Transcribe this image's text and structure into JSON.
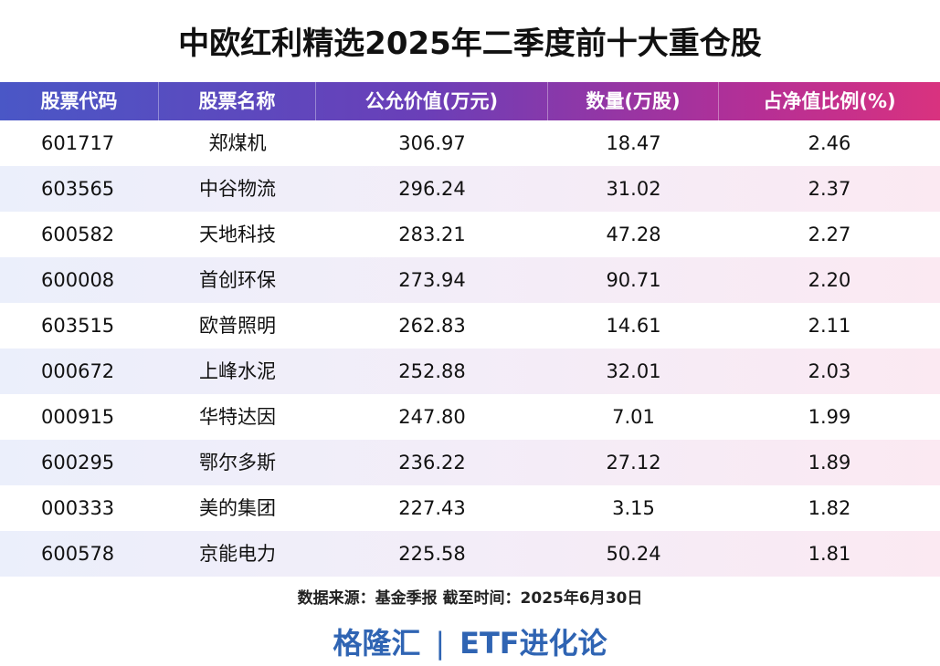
{
  "title": "中欧红利精选2025年二季度前十大重仓股",
  "headers": [
    "股票代码",
    "股票名称",
    "公允价值(万元)",
    "数量(万股)",
    "占净值比例(%)"
  ],
  "rows": [
    [
      "601717",
      "郑煤机",
      "306.97",
      "18.47",
      "2.46"
    ],
    [
      "603565",
      "中谷物流",
      "296.24",
      "31.02",
      "2.37"
    ],
    [
      "600582",
      "天地科技",
      "283.21",
      "47.28",
      "2.27"
    ],
    [
      "600008",
      "首创环保",
      "273.94",
      "90.71",
      "2.20"
    ],
    [
      "603515",
      "欧普照明",
      "262.83",
      "14.61",
      "2.11"
    ],
    [
      "000672",
      "上峰水泥",
      "252.88",
      "32.01",
      "2.03"
    ],
    [
      "000915",
      "华特达因",
      "247.80",
      "7.01",
      "1.99"
    ],
    [
      "600295",
      "鄂尔多斯",
      "236.22",
      "27.12",
      "1.89"
    ],
    [
      "000333",
      "美的集团",
      "227.43",
      "3.15",
      "1.82"
    ],
    [
      "600578",
      "京能电力",
      "225.58",
      "50.24",
      "1.81"
    ]
  ],
  "source": "数据来源：基金季报   截至时间：2025年6月30日",
  "brand": {
    "left": "格隆汇",
    "separator": "|",
    "right": "ETF进化论"
  },
  "colors": {
    "header_start": "#4a57c6",
    "header_end": "#d9327f",
    "brand": "#2f64b3"
  }
}
